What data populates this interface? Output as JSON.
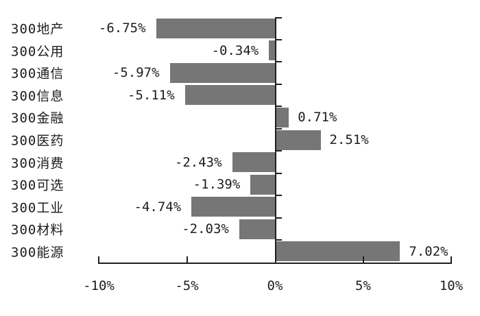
{
  "chart_data": {
    "type": "bar",
    "orientation": "horizontal",
    "title": "",
    "xlabel": "",
    "ylabel": "",
    "categories": [
      "300地产",
      "300公用",
      "300通信",
      "300信息",
      "300金融",
      "300医药",
      "300消费",
      "300可选",
      "300工业",
      "300材料",
      "300能源"
    ],
    "values": [
      -6.75,
      -0.34,
      -5.97,
      -5.11,
      0.71,
      2.51,
      -2.43,
      -1.39,
      -4.74,
      -2.03,
      7.02
    ],
    "value_labels": [
      "-6.75%",
      "-0.34%",
      "-5.97%",
      "-5.11%",
      "0.71%",
      "2.51%",
      "-2.43%",
      "-1.39%",
      "-4.74%",
      "-2.03%",
      "7.02%"
    ],
    "xlim": [
      -10,
      10
    ],
    "x_tick_values": [
      -10,
      -5,
      0,
      5,
      10
    ],
    "x_tick_labels": [
      "-10%",
      "-5%",
      "0%",
      "5%",
      "10%"
    ],
    "grid": false,
    "legend": false,
    "bar_color": "#767676",
    "axis_color": "#1f1f1f",
    "text_color": "#1c1c1c",
    "background": "#ffffff"
  }
}
